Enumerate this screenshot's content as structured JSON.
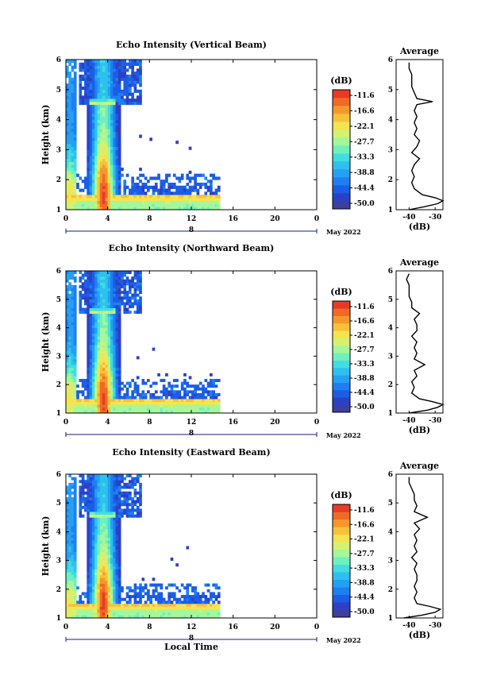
{
  "colors": {
    "scale": [
      "#3a3fa0",
      "#2c40c6",
      "#1b5ee6",
      "#1f7ff2",
      "#24a0f2",
      "#2ec0ee",
      "#42dde0",
      "#6ef0c0",
      "#a4f79a",
      "#d4f270",
      "#f4e450",
      "#f8c13a",
      "#f5982c",
      "#ef6a26",
      "#e83a24"
    ],
    "axis": "#000000",
    "time_bar": "#1a1a8a"
  },
  "colorbar": {
    "unit": "(dB)",
    "ticks": [
      "-11.6",
      "-16.6",
      "-22.1",
      "-27.7",
      "-33.3",
      "-38.8",
      "-44.4",
      "-50.0"
    ]
  },
  "chart_data": [
    {
      "type": "heatmap",
      "title": "Echo Intensity (Vertical Beam)",
      "ylabel": "Height (km)",
      "xticks": [
        "0",
        "4",
        "8",
        "12",
        "16",
        "20",
        "0"
      ],
      "xlim": [
        0,
        24
      ],
      "ylim": [
        1,
        6
      ],
      "yticks": [
        "1",
        "2",
        "3",
        "4",
        "5",
        "6"
      ],
      "date_label": "May 2022",
      "day_label": "8",
      "data_coverage_hours": [
        0,
        14.7
      ],
      "intensity_max_height_km": 1.5,
      "profile": {
        "title": "Average",
        "xlabel": "(dB)",
        "xticks": [
          "-40",
          "-30"
        ],
        "xlim": [
          -45,
          -27
        ],
        "ylim": [
          1,
          6
        ],
        "yticks": [
          "1",
          "2",
          "3",
          "4",
          "5",
          "6"
        ],
        "heights": [
          1.0,
          1.1,
          1.2,
          1.3,
          1.4,
          1.5,
          1.7,
          1.9,
          2.1,
          2.3,
          2.5,
          2.7,
          2.9,
          3.1,
          3.3,
          3.5,
          3.7,
          3.9,
          4.1,
          4.3,
          4.5,
          4.6,
          4.7,
          4.9,
          5.1,
          5.3,
          5.5,
          5.7,
          5.9
        ],
        "values": [
          -40,
          -34,
          -29,
          -27,
          -30,
          -35,
          -38,
          -39,
          -38,
          -39,
          -38,
          -36,
          -39,
          -37,
          -36,
          -38,
          -37,
          -38,
          -37,
          -38,
          -37,
          -31,
          -37,
          -38,
          -39,
          -39,
          -39,
          -40,
          -40
        ]
      }
    },
    {
      "type": "heatmap",
      "title": "Echo Intensity (Northward Beam)",
      "ylabel": "Height (km)",
      "xticks": [
        "0",
        "4",
        "8",
        "12",
        "16",
        "20",
        "0"
      ],
      "xlim": [
        0,
        24
      ],
      "ylim": [
        1,
        6
      ],
      "yticks": [
        "1",
        "2",
        "3",
        "4",
        "5",
        "6"
      ],
      "date_label": "May 2022",
      "day_label": "8",
      "data_coverage_hours": [
        0,
        14.7
      ],
      "intensity_max_height_km": 1.5,
      "profile": {
        "title": "Average",
        "xlabel": "(dB)",
        "xticks": [
          "-40",
          "-30"
        ],
        "xlim": [
          -45,
          -27
        ],
        "ylim": [
          1,
          6
        ],
        "yticks": [
          "1",
          "2",
          "3",
          "4",
          "5",
          "6"
        ],
        "heights": [
          1.0,
          1.1,
          1.2,
          1.3,
          1.4,
          1.5,
          1.7,
          1.9,
          2.1,
          2.3,
          2.5,
          2.7,
          2.9,
          3.1,
          3.3,
          3.5,
          3.7,
          3.9,
          4.1,
          4.3,
          4.5,
          4.7,
          4.9,
          5.1,
          5.3,
          5.5,
          5.7,
          5.9
        ],
        "values": [
          -40,
          -33,
          -29,
          -27,
          -31,
          -36,
          -39,
          -38,
          -39,
          -37,
          -38,
          -34,
          -38,
          -37,
          -38,
          -37,
          -39,
          -37,
          -37,
          -38,
          -36,
          -39,
          -39,
          -40,
          -40,
          -40,
          -41,
          -40
        ]
      }
    },
    {
      "type": "heatmap",
      "title": "Echo Intensity (Eastward Beam)",
      "ylabel": "Height (km)",
      "xlabel": "Local Time",
      "xticks": [
        "0",
        "4",
        "8",
        "12",
        "16",
        "20",
        "0"
      ],
      "xlim": [
        0,
        24
      ],
      "ylim": [
        1,
        6
      ],
      "yticks": [
        "1",
        "2",
        "3",
        "4",
        "5",
        "6"
      ],
      "date_label": "May 2022",
      "day_label": "8",
      "data_coverage_hours": [
        0,
        14.7
      ],
      "intensity_max_height_km": 1.5,
      "profile": {
        "title": "Average",
        "xlabel": "(dB)",
        "xticks": [
          "-40",
          "-30"
        ],
        "xlim": [
          -45,
          -27
        ],
        "ylim": [
          1,
          6
        ],
        "yticks": [
          "1",
          "2",
          "3",
          "4",
          "5",
          "6"
        ],
        "heights": [
          1.0,
          1.1,
          1.2,
          1.3,
          1.4,
          1.5,
          1.7,
          1.9,
          2.1,
          2.3,
          2.5,
          2.7,
          2.9,
          3.1,
          3.3,
          3.5,
          3.7,
          3.9,
          4.1,
          4.3,
          4.5,
          4.7,
          4.9,
          5.1,
          5.3,
          5.5,
          5.7,
          5.9
        ],
        "values": [
          -42,
          -35,
          -30,
          -28,
          -32,
          -37,
          -38,
          -37,
          -38,
          -37,
          -37,
          -38,
          -37,
          -39,
          -37,
          -38,
          -37,
          -38,
          -36,
          -38,
          -33,
          -38,
          -37,
          -38,
          -38,
          -39,
          -40,
          -40
        ]
      }
    }
  ]
}
